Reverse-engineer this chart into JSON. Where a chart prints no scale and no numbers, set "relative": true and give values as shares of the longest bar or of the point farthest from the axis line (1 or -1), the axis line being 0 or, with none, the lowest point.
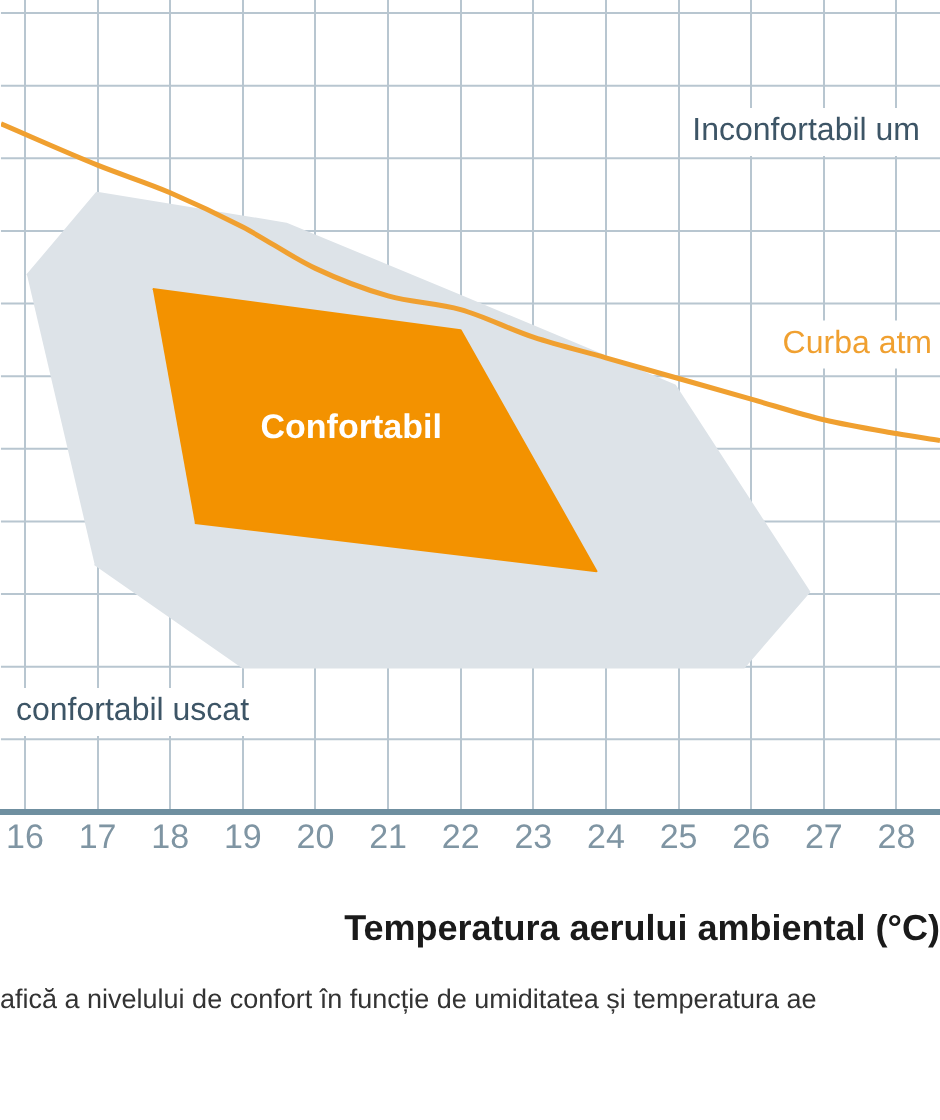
{
  "chart_data": {
    "type": "line",
    "xlabel": "Temperatura aerului ambiental (°C)",
    "relative": true,
    "xlim": [
      15.67,
      28.6
    ],
    "xticks": [
      16,
      17,
      18,
      19,
      20,
      21,
      22,
      23,
      24,
      25,
      26,
      27,
      28
    ],
    "grid": true,
    "legend": false,
    "marker": "none",
    "series": [
      {
        "type": "area",
        "color": "#dde3e8",
        "x": [
          16.03,
          16.99,
          19.6,
          22.0,
          24.95,
          26.8,
          25.9,
          19.0,
          16.96
        ],
        "values": [
          0.78,
          0.9,
          0.855,
          0.75,
          0.62,
          0.32,
          0.21,
          0.21,
          0.36
        ]
      },
      {
        "type": "area",
        "name": "Confortabil",
        "color": "#f39200",
        "x": [
          17.76,
          22.0,
          23.87,
          18.34
        ],
        "values": [
          0.76,
          0.7,
          0.35,
          0.42
        ]
      },
      {
        "type": "line",
        "name": "Curba atm",
        "color": "#f0a030",
        "x": [
          15.67,
          17,
          18,
          19,
          20,
          21,
          22,
          23,
          24,
          25,
          26,
          27,
          28,
          28.6
        ],
        "values": [
          1.0,
          0.94,
          0.9,
          0.85,
          0.79,
          0.75,
          0.73,
          0.69,
          0.66,
          0.63,
          0.6,
          0.57,
          0.55,
          0.54
        ]
      }
    ],
    "annotations": [
      "Inconfortabil um",
      "confortabil uscat",
      "afică a nivelului de confort în funcție de umiditatea și temperatura ae"
    ]
  }
}
